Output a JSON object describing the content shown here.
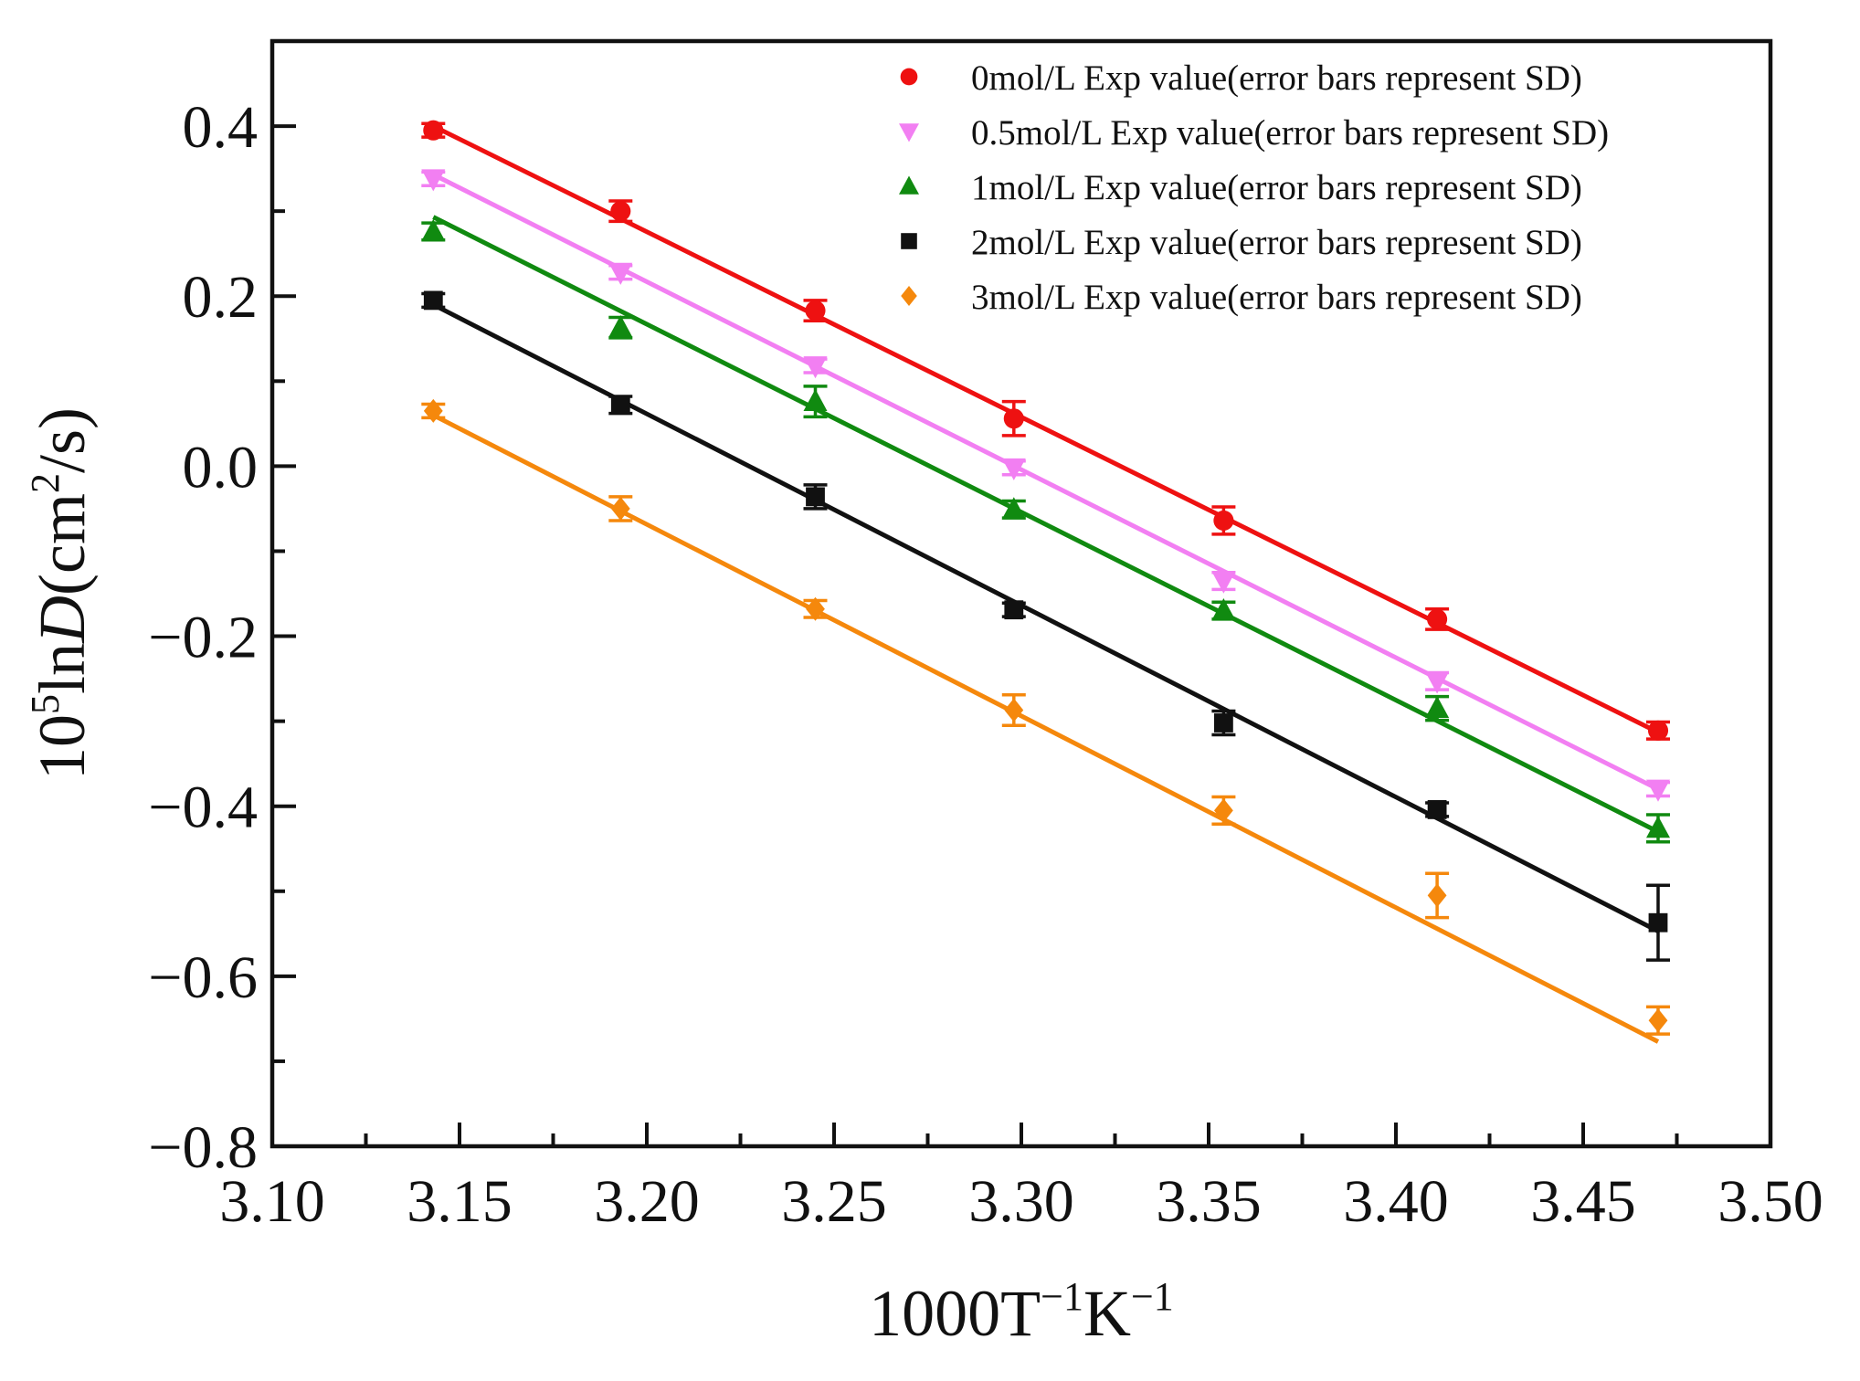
{
  "chart_data": {
    "type": "scatter",
    "xlabel": {
      "base": "1000T",
      "sup1": "−1",
      "mid": "K",
      "sup2": "−1"
    },
    "ylabel": {
      "pre": "10",
      "sup1": "5",
      "mid": "ln",
      "ital": "D",
      "post1": "(cm",
      "sup2": "2",
      "post2": "/s)"
    },
    "xlim": [
      3.1,
      3.5
    ],
    "ylim": [
      -0.8,
      0.5
    ],
    "x_ticks": [
      3.1,
      3.15,
      3.2,
      3.25,
      3.3,
      3.35,
      3.4,
      3.45,
      3.5
    ],
    "x_tick_labels": [
      "3.10",
      "3.15",
      "3.20",
      "3.25",
      "3.30",
      "3.35",
      "3.40",
      "3.45",
      "3.50"
    ],
    "y_ticks": [
      -0.8,
      -0.6,
      -0.4,
      -0.2,
      0.0,
      0.2,
      0.4
    ],
    "y_tick_labels": [
      "−0.8",
      "−0.6",
      "−0.4",
      "−0.2",
      "0.0",
      "0.2",
      "0.4"
    ],
    "x_minor_ticks": [
      3.125,
      3.175,
      3.225,
      3.275,
      3.325,
      3.375,
      3.425,
      3.475
    ],
    "y_minor_ticks": [
      -0.7,
      -0.5,
      -0.3,
      -0.1,
      0.1,
      0.3
    ],
    "grid": false,
    "legend_position": "top-right",
    "x": [
      3.143,
      3.193,
      3.245,
      3.298,
      3.354,
      3.411,
      3.47
    ],
    "series": [
      {
        "name": "0mol/L Exp value(error bars represent SD)",
        "color": "#ee1111",
        "marker": "circle",
        "values": [
          0.395,
          0.3,
          0.183,
          0.056,
          -0.064,
          -0.18,
          -0.311
        ],
        "errors": [
          0.008,
          0.012,
          0.012,
          0.02,
          0.016,
          0.012,
          0.01
        ],
        "fit": [
          0.4,
          -0.313
        ]
      },
      {
        "name": "0.5mol/L Exp value(error bars represent SD)",
        "color": "#f27ff2",
        "marker": "triangle-down",
        "values": [
          0.338,
          0.228,
          0.118,
          -0.002,
          -0.135,
          -0.253,
          -0.38
        ],
        "errors": [
          0.008,
          0.008,
          0.008,
          0.008,
          0.01,
          0.01,
          0.008
        ],
        "fit": [
          0.343,
          -0.38
        ]
      },
      {
        "name": "1mol/L Exp value(error bars represent SD)",
        "color": "#108a10",
        "marker": "triangle-up",
        "values": [
          0.276,
          0.163,
          0.076,
          -0.051,
          -0.17,
          -0.285,
          -0.426
        ],
        "errors": [
          0.01,
          0.012,
          0.018,
          0.01,
          0.01,
          0.014,
          0.016
        ],
        "fit": [
          0.293,
          -0.43
        ]
      },
      {
        "name": "2mol/L Exp value(error bars represent SD)",
        "color": "#111111",
        "marker": "square",
        "values": [
          0.195,
          0.072,
          -0.036,
          -0.169,
          -0.302,
          -0.404,
          -0.537
        ],
        "errors": [
          0.008,
          0.01,
          0.014,
          0.008,
          0.014,
          0.008,
          0.044
        ],
        "fit": [
          0.19,
          -0.547
        ]
      },
      {
        "name": "3mol/L Exp value(error bars represent SD)",
        "color": "#f5880c",
        "marker": "diamond",
        "values": [
          0.065,
          -0.05,
          -0.168,
          -0.287,
          -0.405,
          -0.505,
          -0.652
        ],
        "errors": [
          0.008,
          0.014,
          0.01,
          0.018,
          0.016,
          0.026,
          0.016
        ],
        "fit": [
          0.06,
          -0.677
        ]
      }
    ]
  }
}
